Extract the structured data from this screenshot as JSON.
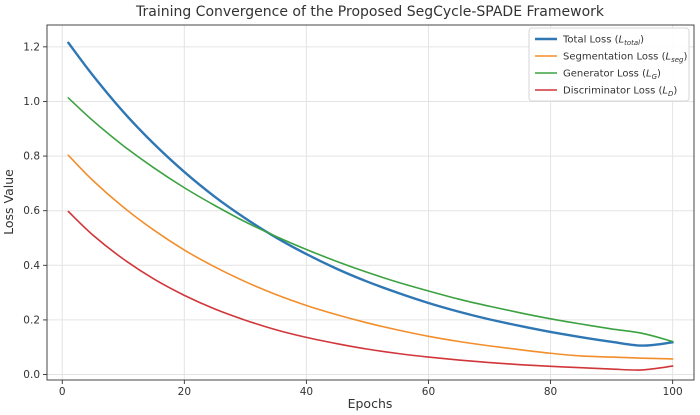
{
  "chart_data": {
    "type": "line",
    "title": "Training Convergence of the Proposed SegCycle-SPADE Framework",
    "xlabel": "Epochs",
    "ylabel": "Loss Value",
    "xlim": [
      -2.5,
      103.5
    ],
    "ylim": [
      -0.02,
      1.28
    ],
    "xticks": [
      0,
      20,
      40,
      60,
      80,
      100
    ],
    "yticks": [
      0.0,
      0.2,
      0.4,
      0.6,
      0.8,
      1.0,
      1.2
    ],
    "xtick_labels": [
      "0",
      "20",
      "40",
      "60",
      "80",
      "100"
    ],
    "ytick_labels": [
      "0.0",
      "0.2",
      "0.4",
      "0.6",
      "0.8",
      "1.0",
      "1.2"
    ],
    "grid": true,
    "legend_position": "top-right",
    "x": [
      1,
      5,
      10,
      15,
      20,
      25,
      30,
      35,
      40,
      45,
      50,
      55,
      60,
      65,
      70,
      75,
      80,
      85,
      90,
      95,
      100
    ],
    "series": [
      {
        "name": "Total Loss (L_total)",
        "legend": {
          "main": "Total Loss (",
          "sym": "L",
          "sub": "total",
          "end": ")"
        },
        "color": "#2f77b4",
        "width": 2.4,
        "values": [
          1.215,
          1.096,
          0.962,
          0.845,
          0.742,
          0.651,
          0.572,
          0.502,
          0.441,
          0.387,
          0.34,
          0.299,
          0.262,
          0.23,
          0.202,
          0.178,
          0.156,
          0.137,
          0.12,
          0.106,
          0.118
        ]
      },
      {
        "name": "Segmentation Loss (L_seg)",
        "legend": {
          "main": "Segmentation Loss (",
          "sym": "L",
          "sub": "seg",
          "end": ")"
        },
        "color": "#f28e2b",
        "width": 1.6,
        "values": [
          0.803,
          0.711,
          0.613,
          0.529,
          0.456,
          0.394,
          0.34,
          0.293,
          0.253,
          0.219,
          0.189,
          0.163,
          0.14,
          0.121,
          0.105,
          0.091,
          0.078,
          0.068,
          0.064,
          0.06,
          0.057
        ]
      },
      {
        "name": "Generator Loss (L_G)",
        "legend": {
          "main": "Generator Loss (",
          "sym": "L",
          "sub": "G",
          "end": ")"
        },
        "color": "#3ca241",
        "width": 1.6,
        "values": [
          1.013,
          0.93,
          0.838,
          0.757,
          0.684,
          0.619,
          0.559,
          0.506,
          0.458,
          0.414,
          0.374,
          0.338,
          0.306,
          0.276,
          0.25,
          0.226,
          0.204,
          0.185,
          0.167,
          0.151,
          0.121
        ]
      },
      {
        "name": "Discriminator Loss (L_D)",
        "legend": {
          "main": "Discriminator Loss (",
          "sym": "L",
          "sub": "D",
          "end": ")"
        },
        "color": "#d1363a",
        "width": 1.6,
        "values": [
          0.597,
          0.511,
          0.423,
          0.35,
          0.29,
          0.24,
          0.199,
          0.164,
          0.136,
          0.113,
          0.093,
          0.077,
          0.064,
          0.053,
          0.044,
          0.036,
          0.03,
          0.025,
          0.02,
          0.017,
          0.031
        ]
      }
    ]
  }
}
